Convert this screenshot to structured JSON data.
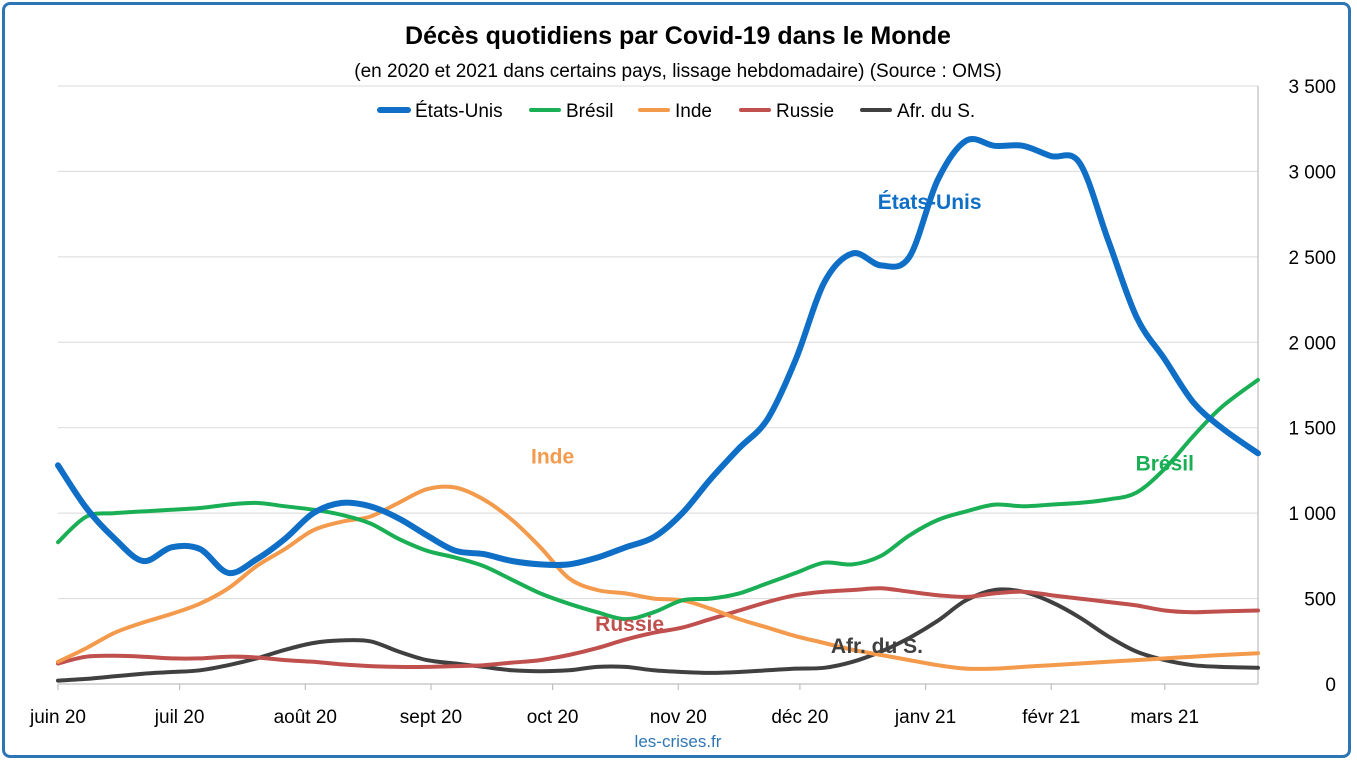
{
  "chart_data": {
    "type": "line",
    "title": "Décès quotidiens par Covid-19 dans le Monde",
    "subtitle": "(en 2020 et 2021 dans certains pays, lissage hebdomadaire) (Source : OMS)",
    "source_credit": "les-crises.fr",
    "x_tick_labels": [
      "juin 20",
      "juil 20",
      "août 20",
      "sept 20",
      "oct 20",
      "nov 20",
      "déc 20",
      "janv 21",
      "févr 21",
      "mars 21"
    ],
    "x_ticks": [
      "2020-06-01",
      "2020-07-01",
      "2020-08-01",
      "2020-09-01",
      "2020-10-01",
      "2020-11-01",
      "2020-12-01",
      "2021-01-01",
      "2021-02-01",
      "2021-03-01"
    ],
    "xlim": [
      "2020-06-01",
      "2021-03-24"
    ],
    "y_tick_labels": [
      "0",
      "500",
      "1 000",
      "1 500",
      "2 000",
      "2 500",
      "3 000",
      "3 500"
    ],
    "ylim": [
      0,
      3500
    ],
    "grid": "horizontal",
    "y_axis_side": "right",
    "legend_position": "top",
    "series": [
      {
        "name": "États-Unis",
        "color": "#0f6fc6",
        "annotation": "États-Unis",
        "x": [
          "2020-06-01",
          "2020-06-08",
          "2020-06-15",
          "2020-06-22",
          "2020-06-29",
          "2020-07-06",
          "2020-07-13",
          "2020-07-20",
          "2020-07-27",
          "2020-08-03",
          "2020-08-10",
          "2020-08-17",
          "2020-08-24",
          "2020-08-31",
          "2020-09-07",
          "2020-09-14",
          "2020-09-21",
          "2020-09-28",
          "2020-10-05",
          "2020-10-12",
          "2020-10-19",
          "2020-10-26",
          "2020-11-02",
          "2020-11-09",
          "2020-11-16",
          "2020-11-23",
          "2020-11-30",
          "2020-12-07",
          "2020-12-14",
          "2020-12-21",
          "2020-12-28",
          "2021-01-04",
          "2021-01-11",
          "2021-01-18",
          "2021-01-25",
          "2021-02-01",
          "2021-02-08",
          "2021-02-15",
          "2021-02-22",
          "2021-03-01",
          "2021-03-08",
          "2021-03-15",
          "2021-03-24"
        ],
        "values": [
          1280,
          1030,
          850,
          720,
          800,
          790,
          650,
          730,
          850,
          1000,
          1060,
          1040,
          970,
          870,
          780,
          760,
          720,
          700,
          700,
          740,
          800,
          860,
          1000,
          1200,
          1380,
          1550,
          1900,
          2350,
          2520,
          2450,
          2500,
          2950,
          3180,
          3150,
          3150,
          3090,
          3050,
          2600,
          2150,
          1900,
          1650,
          1500,
          1350
        ]
      },
      {
        "name": "Brésil",
        "color": "#1aaf54",
        "annotation": "Brésil",
        "x": [
          "2020-06-01",
          "2020-06-08",
          "2020-06-15",
          "2020-06-22",
          "2020-06-29",
          "2020-07-06",
          "2020-07-13",
          "2020-07-20",
          "2020-07-27",
          "2020-08-03",
          "2020-08-10",
          "2020-08-17",
          "2020-08-24",
          "2020-08-31",
          "2020-09-07",
          "2020-09-14",
          "2020-09-21",
          "2020-09-28",
          "2020-10-05",
          "2020-10-12",
          "2020-10-19",
          "2020-10-26",
          "2020-11-02",
          "2020-11-09",
          "2020-11-16",
          "2020-11-23",
          "2020-11-30",
          "2020-12-07",
          "2020-12-14",
          "2020-12-21",
          "2020-12-28",
          "2021-01-04",
          "2021-01-11",
          "2021-01-18",
          "2021-01-25",
          "2021-02-01",
          "2021-02-08",
          "2021-02-15",
          "2021-02-22",
          "2021-03-01",
          "2021-03-08",
          "2021-03-15",
          "2021-03-24"
        ],
        "values": [
          830,
          980,
          1000,
          1010,
          1020,
          1030,
          1050,
          1060,
          1040,
          1020,
          990,
          940,
          850,
          780,
          740,
          690,
          610,
          530,
          470,
          420,
          380,
          420,
          490,
          500,
          530,
          590,
          650,
          710,
          700,
          750,
          870,
          960,
          1010,
          1050,
          1040,
          1050,
          1060,
          1080,
          1120,
          1260,
          1450,
          1620,
          1780
        ]
      },
      {
        "name": "Inde",
        "color": "#f39a4c",
        "annotation": "Inde",
        "x": [
          "2020-06-01",
          "2020-06-08",
          "2020-06-15",
          "2020-06-22",
          "2020-06-29",
          "2020-07-06",
          "2020-07-13",
          "2020-07-20",
          "2020-07-27",
          "2020-08-03",
          "2020-08-10",
          "2020-08-17",
          "2020-08-24",
          "2020-08-31",
          "2020-09-07",
          "2020-09-14",
          "2020-09-21",
          "2020-09-28",
          "2020-10-05",
          "2020-10-12",
          "2020-10-19",
          "2020-10-26",
          "2020-11-02",
          "2020-11-09",
          "2020-11-16",
          "2020-11-23",
          "2020-11-30",
          "2020-12-07",
          "2020-12-14",
          "2020-12-21",
          "2020-12-28",
          "2021-01-04",
          "2021-01-11",
          "2021-01-18",
          "2021-01-25",
          "2021-02-01",
          "2021-02-08",
          "2021-02-15",
          "2021-02-22",
          "2021-03-01",
          "2021-03-08",
          "2021-03-15",
          "2021-03-24"
        ],
        "values": [
          130,
          210,
          300,
          360,
          410,
          470,
          560,
          690,
          790,
          900,
          950,
          980,
          1060,
          1140,
          1150,
          1080,
          960,
          800,
          620,
          550,
          530,
          500,
          490,
          440,
          380,
          330,
          280,
          240,
          200,
          170,
          140,
          110,
          90,
          90,
          100,
          110,
          120,
          130,
          140,
          150,
          160,
          170,
          180
        ]
      },
      {
        "name": "Russie",
        "color": "#c0504d",
        "annotation": "Russie",
        "x": [
          "2020-06-01",
          "2020-06-08",
          "2020-06-15",
          "2020-06-22",
          "2020-06-29",
          "2020-07-06",
          "2020-07-13",
          "2020-07-20",
          "2020-07-27",
          "2020-08-03",
          "2020-08-10",
          "2020-08-17",
          "2020-08-24",
          "2020-08-31",
          "2020-09-07",
          "2020-09-14",
          "2020-09-21",
          "2020-09-28",
          "2020-10-05",
          "2020-10-12",
          "2020-10-19",
          "2020-10-26",
          "2020-11-02",
          "2020-11-09",
          "2020-11-16",
          "2020-11-23",
          "2020-11-30",
          "2020-12-07",
          "2020-12-14",
          "2020-12-21",
          "2020-12-28",
          "2021-01-04",
          "2021-01-11",
          "2021-01-18",
          "2021-01-25",
          "2021-02-01",
          "2021-02-08",
          "2021-02-15",
          "2021-02-22",
          "2021-03-01",
          "2021-03-08",
          "2021-03-15",
          "2021-03-24"
        ],
        "values": [
          120,
          160,
          165,
          160,
          150,
          150,
          160,
          155,
          140,
          130,
          115,
          105,
          100,
          100,
          105,
          110,
          125,
          140,
          170,
          210,
          260,
          300,
          330,
          380,
          430,
          480,
          520,
          540,
          550,
          560,
          540,
          520,
          510,
          530,
          540,
          520,
          500,
          480,
          460,
          430,
          420,
          425,
          430
        ]
      },
      {
        "name": "Afr. du S.",
        "color": "#404040",
        "annotation": "Afr. du S.",
        "x": [
          "2020-06-01",
          "2020-06-08",
          "2020-06-15",
          "2020-06-22",
          "2020-06-29",
          "2020-07-06",
          "2020-07-13",
          "2020-07-20",
          "2020-07-27",
          "2020-08-03",
          "2020-08-10",
          "2020-08-17",
          "2020-08-24",
          "2020-08-31",
          "2020-09-07",
          "2020-09-14",
          "2020-09-21",
          "2020-09-28",
          "2020-10-05",
          "2020-10-12",
          "2020-10-19",
          "2020-10-26",
          "2020-11-02",
          "2020-11-09",
          "2020-11-16",
          "2020-11-23",
          "2020-11-30",
          "2020-12-07",
          "2020-12-14",
          "2020-12-21",
          "2020-12-28",
          "2021-01-04",
          "2021-01-11",
          "2021-01-18",
          "2021-01-25",
          "2021-02-01",
          "2021-02-08",
          "2021-02-15",
          "2021-02-22",
          "2021-03-01",
          "2021-03-08",
          "2021-03-15",
          "2021-03-24"
        ],
        "values": [
          20,
          30,
          45,
          60,
          70,
          80,
          110,
          150,
          200,
          240,
          255,
          250,
          190,
          140,
          120,
          100,
          80,
          75,
          80,
          100,
          100,
          80,
          70,
          65,
          70,
          80,
          90,
          95,
          130,
          190,
          270,
          370,
          490,
          550,
          540,
          480,
          390,
          280,
          190,
          140,
          110,
          100,
          95
        ]
      }
    ],
    "legend": [
      "États-Unis",
      "Brésil",
      "Inde",
      "Russie",
      "Afr. du S."
    ]
  }
}
